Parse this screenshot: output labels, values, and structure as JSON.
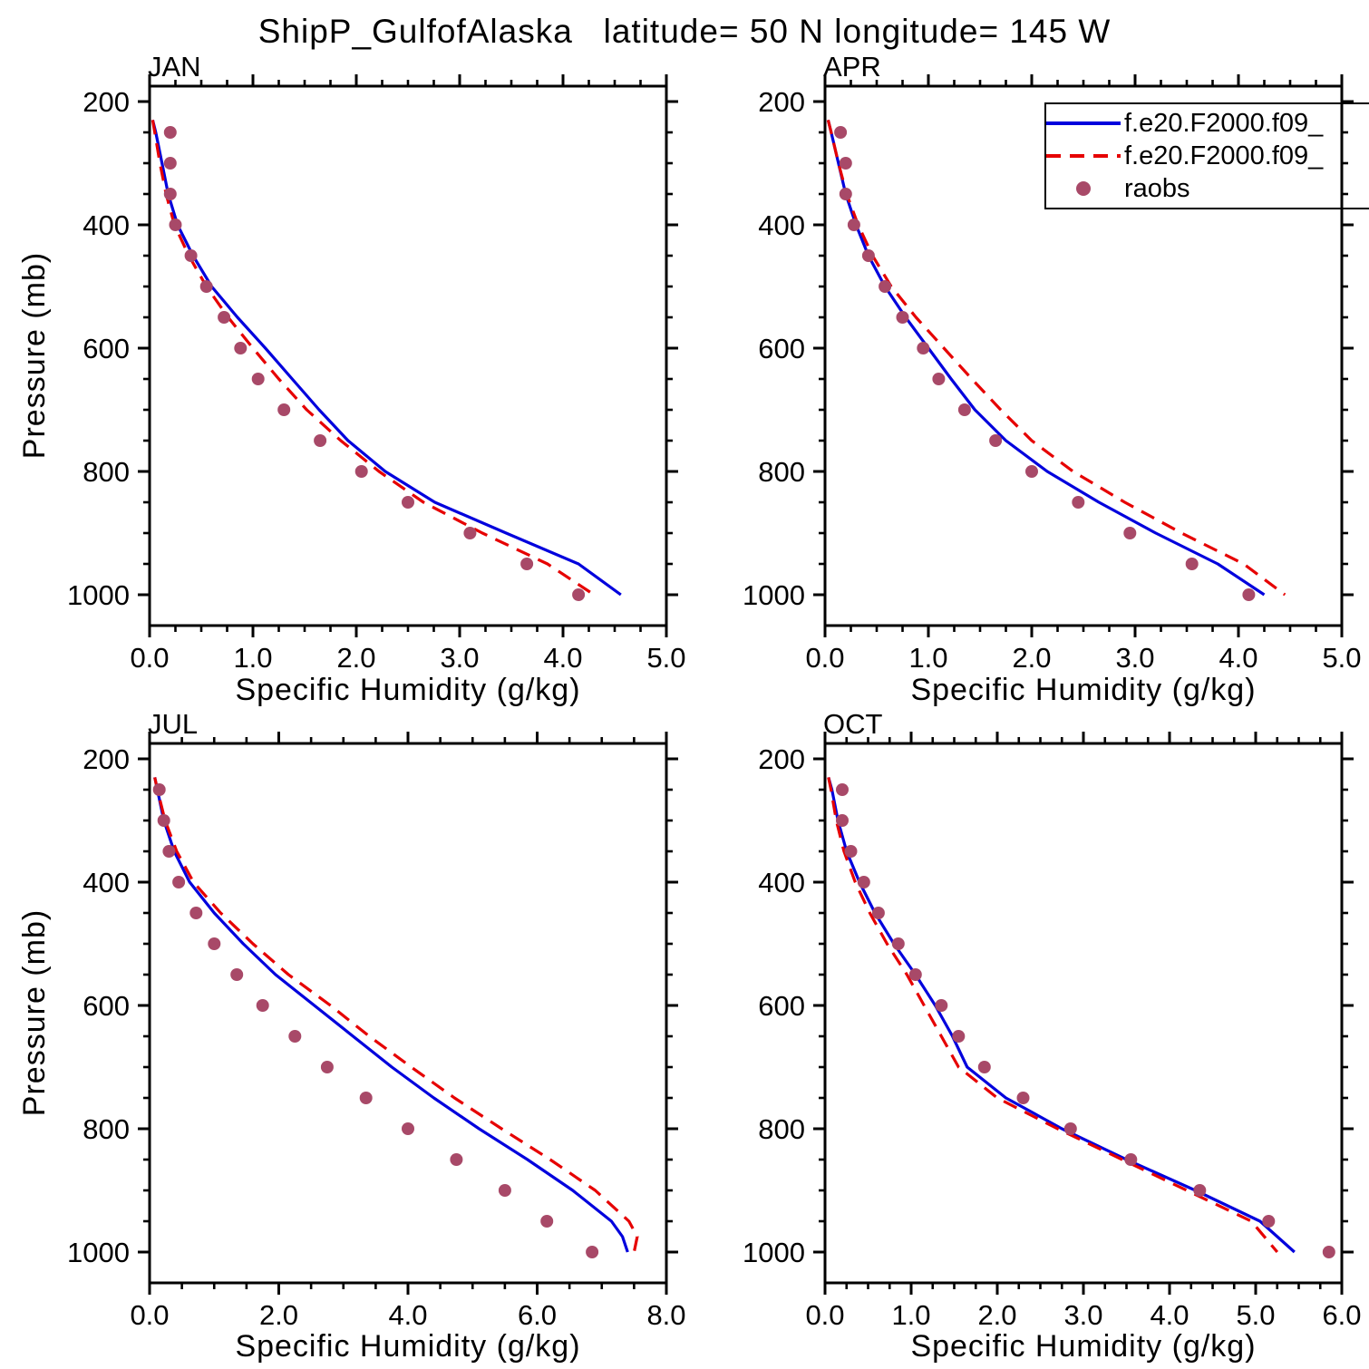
{
  "title": "ShipP_GulfofAlaska   latitude= 50 N longitude= 145 W",
  "xlabel": "Specific Humidity (g/kg)",
  "ylabel": "Pressure (mb)",
  "legend": {
    "entries": [
      {
        "label": "f.e20.F2000.f09_",
        "style": "solid",
        "color": "#0000dd"
      },
      {
        "label": "f.e20.F2000.f09_",
        "style": "dashed",
        "color": "#e60000"
      },
      {
        "label": "raobs",
        "style": "marker",
        "color": "#a84968"
      }
    ]
  },
  "chart_data": [
    {
      "type": "line",
      "panel": "JAN",
      "xlim": [
        0,
        5
      ],
      "ylim": [
        175,
        1050
      ],
      "y_axis_inverted": true,
      "xticks": {
        "values": [
          0,
          1,
          2,
          3,
          4,
          5
        ],
        "labels": [
          "0.0",
          "1.0",
          "2.0",
          "3.0",
          "4.0",
          "5.0"
        ]
      },
      "yticks": {
        "values": [
          200,
          400,
          600,
          800,
          1000
        ],
        "labels": [
          "200",
          "400",
          "600",
          "800",
          "1000"
        ]
      },
      "xminor_step": 0.25,
      "yminor_step": 50,
      "series": [
        {
          "id": "model-solid",
          "name": "f.e20.F2000.f09_",
          "type": "line",
          "color": "#0000dd",
          "dash": null,
          "pressure": [
            230,
            250,
            300,
            350,
            400,
            450,
            500,
            550,
            600,
            650,
            700,
            750,
            800,
            850,
            900,
            950,
            1000
          ],
          "values": [
            0.03,
            0.06,
            0.12,
            0.18,
            0.27,
            0.42,
            0.6,
            0.85,
            1.12,
            1.38,
            1.64,
            1.92,
            2.28,
            2.76,
            3.45,
            4.15,
            4.56
          ]
        },
        {
          "id": "model-dashed",
          "name": "f.e20.F2000.f09_",
          "type": "line",
          "color": "#e60000",
          "dash": "16 10",
          "pressure": [
            230,
            250,
            300,
            350,
            400,
            450,
            500,
            550,
            600,
            650,
            700,
            750,
            800,
            850,
            900,
            950,
            1000
          ],
          "values": [
            0.03,
            0.05,
            0.1,
            0.16,
            0.24,
            0.38,
            0.55,
            0.76,
            1.0,
            1.25,
            1.52,
            1.85,
            2.22,
            2.65,
            3.22,
            3.85,
            4.3
          ]
        },
        {
          "id": "raobs",
          "name": "raobs",
          "type": "marker",
          "color": "#a84968",
          "pressure": [
            250,
            300,
            350,
            400,
            450,
            500,
            550,
            600,
            650,
            700,
            750,
            800,
            850,
            900,
            950,
            1000
          ],
          "values": [
            0.2,
            0.2,
            0.2,
            0.25,
            0.4,
            0.55,
            0.72,
            0.88,
            1.05,
            1.3,
            1.65,
            2.05,
            2.5,
            3.1,
            3.65,
            4.15
          ]
        }
      ]
    },
    {
      "type": "line",
      "panel": "APR",
      "xlim": [
        0,
        5
      ],
      "ylim": [
        175,
        1050
      ],
      "y_axis_inverted": true,
      "xticks": {
        "values": [
          0,
          1,
          2,
          3,
          4,
          5
        ],
        "labels": [
          "0.0",
          "1.0",
          "2.0",
          "3.0",
          "4.0",
          "5.0"
        ]
      },
      "yticks": {
        "values": [
          200,
          400,
          600,
          800,
          1000
        ],
        "labels": [
          "200",
          "400",
          "600",
          "800",
          "1000"
        ]
      },
      "xminor_step": 0.25,
      "yminor_step": 50,
      "series": [
        {
          "id": "model-solid",
          "name": "f.e20.F2000.f09_",
          "type": "line",
          "color": "#0000dd",
          "dash": null,
          "pressure": [
            230,
            250,
            300,
            350,
            400,
            450,
            500,
            550,
            600,
            650,
            700,
            750,
            800,
            850,
            900,
            950,
            1000
          ],
          "values": [
            0.03,
            0.06,
            0.13,
            0.2,
            0.3,
            0.42,
            0.58,
            0.78,
            1.0,
            1.22,
            1.45,
            1.75,
            2.15,
            2.65,
            3.2,
            3.8,
            4.25
          ]
        },
        {
          "id": "model-dashed",
          "name": "f.e20.F2000.f09_",
          "type": "line",
          "color": "#e60000",
          "dash": "16 10",
          "pressure": [
            230,
            250,
            300,
            350,
            400,
            450,
            500,
            550,
            600,
            650,
            700,
            750,
            800,
            850,
            900,
            950,
            1000
          ],
          "values": [
            0.03,
            0.06,
            0.13,
            0.21,
            0.32,
            0.46,
            0.64,
            0.88,
            1.15,
            1.42,
            1.7,
            2.0,
            2.4,
            2.9,
            3.45,
            4.05,
            4.45
          ]
        },
        {
          "id": "raobs",
          "name": "raobs",
          "type": "marker",
          "color": "#a84968",
          "pressure": [
            250,
            300,
            350,
            400,
            450,
            500,
            550,
            600,
            650,
            700,
            750,
            800,
            850,
            900,
            950,
            1000
          ],
          "values": [
            0.15,
            0.2,
            0.2,
            0.28,
            0.42,
            0.58,
            0.75,
            0.95,
            1.1,
            1.35,
            1.65,
            2.0,
            2.45,
            2.95,
            3.55,
            4.1
          ]
        }
      ]
    },
    {
      "type": "line",
      "panel": "JUL",
      "xlim": [
        0,
        8
      ],
      "ylim": [
        175,
        1050
      ],
      "y_axis_inverted": true,
      "xticks": {
        "values": [
          0,
          2,
          4,
          6,
          8
        ],
        "labels": [
          "0.0",
          "2.0",
          "4.0",
          "6.0",
          "8.0"
        ]
      },
      "yticks": {
        "values": [
          200,
          400,
          600,
          800,
          1000
        ],
        "labels": [
          "200",
          "400",
          "600",
          "800",
          "1000"
        ]
      },
      "xminor_step": 0.5,
      "yminor_step": 50,
      "series": [
        {
          "id": "model-solid",
          "name": "f.e20.F2000.f09_",
          "type": "line",
          "color": "#0000dd",
          "dash": null,
          "pressure": [
            230,
            250,
            300,
            350,
            400,
            450,
            500,
            550,
            600,
            650,
            700,
            750,
            800,
            850,
            900,
            950,
            975,
            1000
          ],
          "values": [
            0.08,
            0.12,
            0.22,
            0.38,
            0.62,
            1.0,
            1.45,
            1.95,
            2.55,
            3.15,
            3.75,
            4.4,
            5.1,
            5.85,
            6.55,
            7.15,
            7.32,
            7.4
          ]
        },
        {
          "id": "model-dashed",
          "name": "f.e20.F2000.f09_",
          "type": "line",
          "color": "#e60000",
          "dash": "16 10",
          "pressure": [
            230,
            250,
            300,
            350,
            400,
            450,
            500,
            550,
            600,
            650,
            700,
            750,
            800,
            850,
            900,
            950,
            975,
            1000
          ],
          "values": [
            0.08,
            0.12,
            0.24,
            0.42,
            0.68,
            1.1,
            1.6,
            2.15,
            2.8,
            3.4,
            4.05,
            4.72,
            5.45,
            6.2,
            6.9,
            7.42,
            7.55,
            7.5
          ]
        },
        {
          "id": "raobs",
          "name": "raobs",
          "type": "marker",
          "color": "#a84968",
          "pressure": [
            250,
            300,
            350,
            400,
            450,
            500,
            550,
            600,
            650,
            700,
            750,
            800,
            850,
            900,
            950,
            1000
          ],
          "values": [
            0.15,
            0.22,
            0.3,
            0.45,
            0.72,
            1.0,
            1.35,
            1.75,
            2.25,
            2.75,
            3.35,
            4.0,
            4.75,
            5.5,
            6.15,
            6.85
          ]
        }
      ]
    },
    {
      "type": "line",
      "panel": "OCT",
      "xlim": [
        0,
        6
      ],
      "ylim": [
        175,
        1050
      ],
      "y_axis_inverted": true,
      "xticks": {
        "values": [
          0,
          1,
          2,
          3,
          4,
          5,
          6
        ],
        "labels": [
          "0.0",
          "1.0",
          "2.0",
          "3.0",
          "4.0",
          "5.0",
          "6.0"
        ]
      },
      "yticks": {
        "values": [
          200,
          400,
          600,
          800,
          1000
        ],
        "labels": [
          "200",
          "400",
          "600",
          "800",
          "1000"
        ]
      },
      "xminor_step": 0.25,
      "yminor_step": 50,
      "series": [
        {
          "id": "model-solid",
          "name": "f.e20.F2000.f09_",
          "type": "line",
          "color": "#0000dd",
          "dash": null,
          "pressure": [
            230,
            250,
            300,
            350,
            400,
            450,
            500,
            550,
            600,
            650,
            700,
            750,
            800,
            850,
            900,
            950,
            1000
          ],
          "values": [
            0.04,
            0.08,
            0.15,
            0.25,
            0.4,
            0.58,
            0.8,
            1.05,
            1.28,
            1.48,
            1.65,
            2.1,
            2.75,
            3.5,
            4.3,
            5.05,
            5.45
          ]
        },
        {
          "id": "model-dashed",
          "name": "f.e20.F2000.f09_",
          "type": "line",
          "color": "#e60000",
          "dash": "16 10",
          "pressure": [
            230,
            250,
            300,
            350,
            400,
            450,
            500,
            550,
            600,
            650,
            700,
            750,
            800,
            850,
            900,
            950,
            1000
          ],
          "values": [
            0.04,
            0.07,
            0.13,
            0.22,
            0.35,
            0.52,
            0.72,
            0.95,
            1.15,
            1.35,
            1.55,
            2.0,
            2.7,
            3.45,
            4.2,
            4.95,
            5.25
          ]
        },
        {
          "id": "raobs",
          "name": "raobs",
          "type": "marker",
          "color": "#a84968",
          "pressure": [
            250,
            300,
            350,
            400,
            450,
            500,
            550,
            600,
            650,
            700,
            750,
            800,
            850,
            900,
            950,
            1000
          ],
          "values": [
            0.2,
            0.2,
            0.3,
            0.45,
            0.62,
            0.85,
            1.05,
            1.35,
            1.55,
            1.85,
            2.3,
            2.85,
            3.55,
            4.35,
            5.15,
            5.85
          ]
        }
      ]
    }
  ]
}
